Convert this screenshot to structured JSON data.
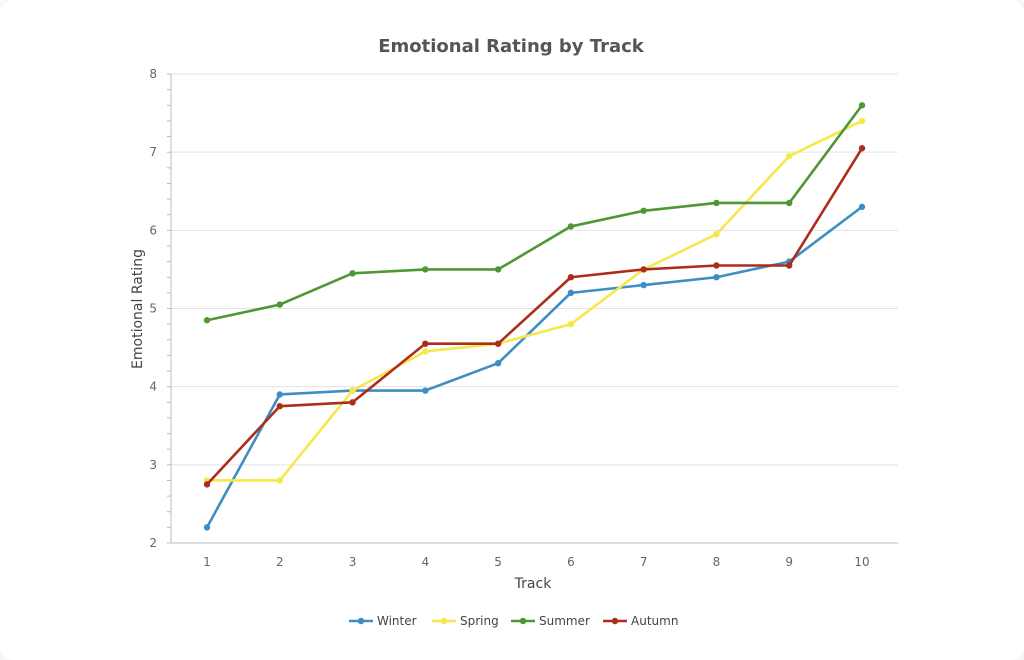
{
  "chart_data": {
    "type": "line",
    "title": "Emotional Rating by Track",
    "xlabel": "Track",
    "ylabel": "Emotional Rating",
    "x": [
      1,
      2,
      3,
      4,
      5,
      6,
      7,
      8,
      9,
      10
    ],
    "ylim": [
      2,
      8
    ],
    "yticks": [
      2,
      3,
      4,
      5,
      6,
      7,
      8
    ],
    "grid": "horizontal",
    "legend_position": "bottom",
    "series": [
      {
        "name": "Winter",
        "color": "#3d8ec4",
        "values": [
          2.2,
          3.9,
          3.95,
          3.95,
          4.3,
          5.2,
          5.3,
          5.4,
          5.6,
          6.3
        ]
      },
      {
        "name": "Spring",
        "color": "#f6e84a",
        "values": [
          2.8,
          2.8,
          3.95,
          4.45,
          4.55,
          4.8,
          5.5,
          5.95,
          6.95,
          7.4
        ]
      },
      {
        "name": "Summer",
        "color": "#4e9636",
        "values": [
          4.85,
          5.05,
          5.45,
          5.5,
          5.5,
          6.05,
          6.25,
          6.35,
          6.35,
          7.6
        ]
      },
      {
        "name": "Autumn",
        "color": "#ad2d1c",
        "values": [
          2.75,
          3.75,
          3.8,
          4.55,
          4.55,
          5.4,
          5.5,
          5.55,
          5.55,
          7.05
        ]
      }
    ]
  }
}
